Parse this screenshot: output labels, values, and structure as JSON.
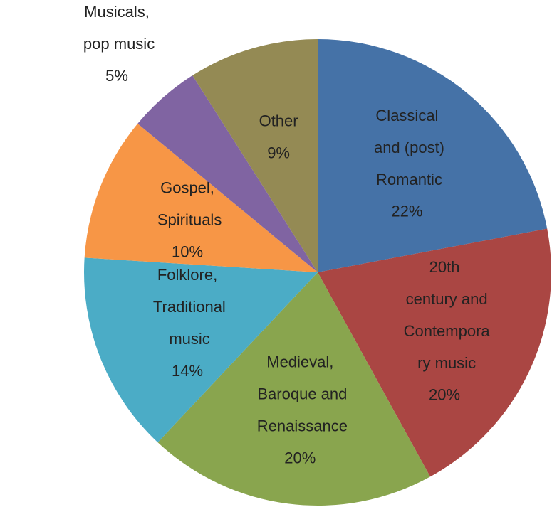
{
  "chart_data": {
    "type": "pie",
    "categories": [
      "Classical and (post) Romantic",
      "20th century and Contemporary music",
      "Medieval, Baroque and Renaissance",
      "Folklore, Traditional music",
      "Gospel, Spirituals",
      "Musicals, pop music",
      "Other"
    ],
    "values": [
      22,
      20,
      20,
      14,
      10,
      5,
      9
    ],
    "value_labels": [
      "22%",
      "20%",
      "20%",
      "14%",
      "10%",
      "5%",
      "9%"
    ],
    "colors": [
      "#4572a7",
      "#aa4643",
      "#89a54e",
      "#4bacc6",
      "#f79646",
      "#8064a2",
      "#948a54"
    ]
  }
}
